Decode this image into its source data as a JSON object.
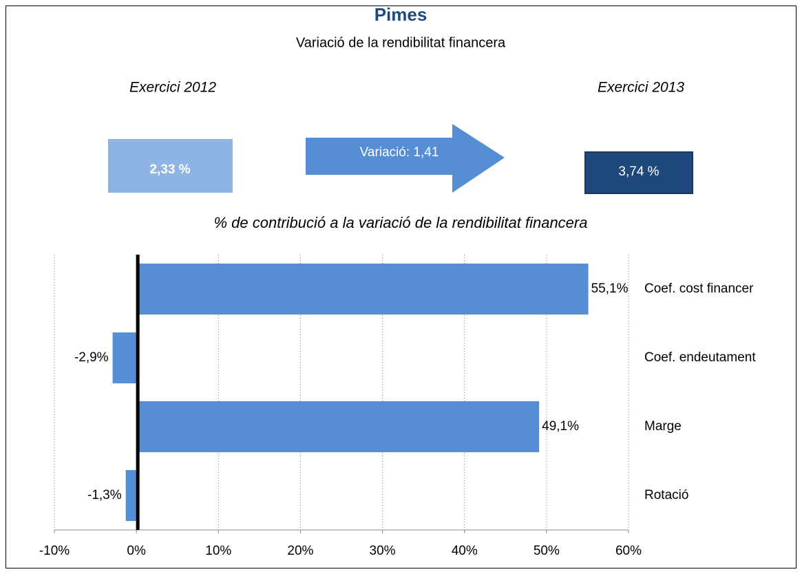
{
  "header": {
    "title": "Pimes",
    "subtitle": "Variació de la rendibilitat financera",
    "left_label": "Exercici 2012",
    "right_label": "Exercici 2013",
    "left_value": "2,33 %",
    "arrow_text": "Variació: 1,41",
    "right_value": "3,74 %"
  },
  "chart_data": {
    "type": "bar",
    "orientation": "horizontal",
    "title": "% de contribució a la variació de la rendibilitat financera",
    "categories": [
      "Coef. cost financer",
      "Coef. endeutament",
      "Marge",
      "Rotació"
    ],
    "values": [
      55.1,
      -2.9,
      49.1,
      -1.3
    ],
    "value_labels": [
      "55,1%",
      "-2,9%",
      "49,1%",
      "-1,3%"
    ],
    "color": "#558ed5",
    "xlim": [
      -10,
      60
    ],
    "xticks": [
      {
        "value": -10,
        "label": "-10%"
      },
      {
        "value": 0,
        "label": "0%"
      },
      {
        "value": 10,
        "label": "10%"
      },
      {
        "value": 20,
        "label": "20%"
      },
      {
        "value": 30,
        "label": "30%"
      },
      {
        "value": 40,
        "label": "40%"
      },
      {
        "value": 50,
        "label": "50%"
      },
      {
        "value": 60,
        "label": "60%"
      }
    ],
    "grid": true
  }
}
